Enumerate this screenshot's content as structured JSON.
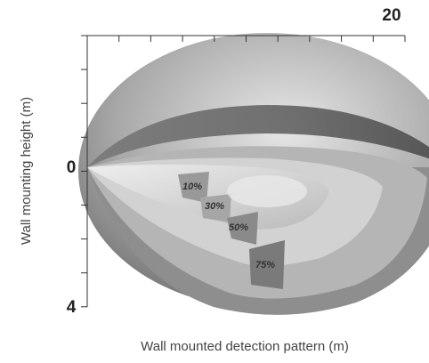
{
  "axes": {
    "x_max_label": "20",
    "y_zero_label": "0",
    "y_max_label": "4",
    "x_title": "Wall mounted detection pattern (m)",
    "y_title": "Wall mounting height (m)"
  },
  "zones": [
    {
      "label": "10%"
    },
    {
      "label": "30%"
    },
    {
      "label": "50%"
    },
    {
      "label": "75%"
    }
  ]
}
